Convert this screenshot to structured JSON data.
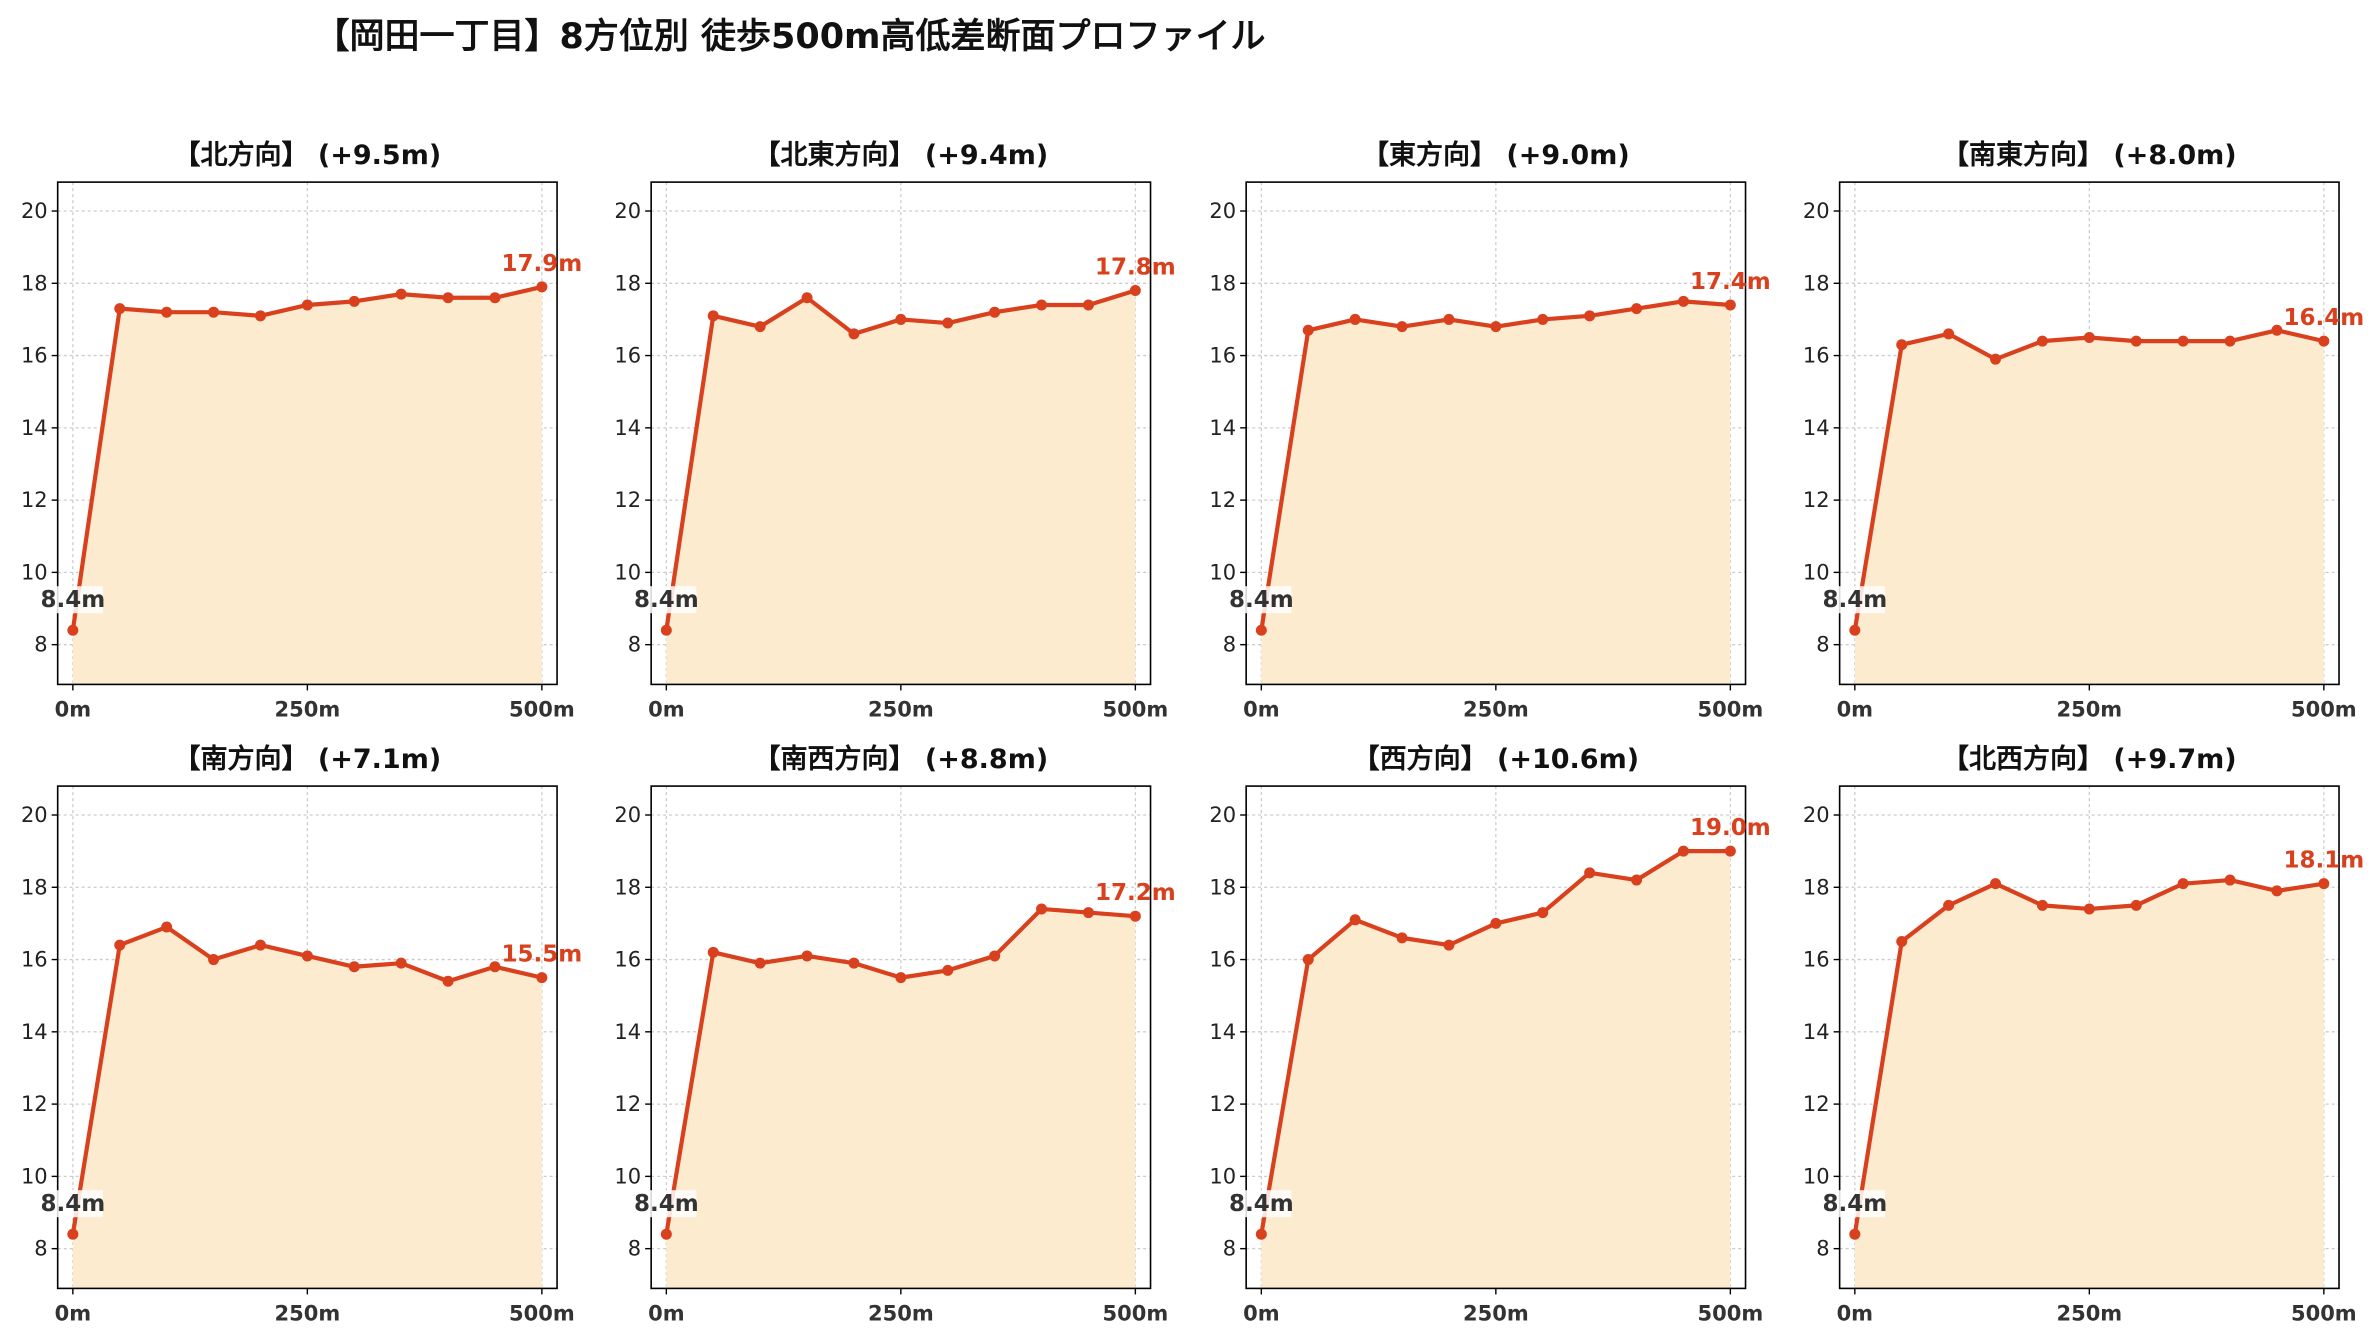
{
  "title": "【岡田一丁目】8方位別 徒歩500m高低差断面プロファイル",
  "colors": {
    "line": "#d9411e",
    "fill": "#fdebd0",
    "grid": "#cccccc",
    "axis": "#000000"
  },
  "chart_data": [
    {
      "type": "area",
      "title": "【北方向】 (+9.5m)",
      "x": [
        0,
        50,
        100,
        150,
        200,
        250,
        300,
        350,
        400,
        450,
        500
      ],
      "y": [
        8.4,
        17.3,
        17.2,
        17.2,
        17.1,
        17.4,
        17.5,
        17.7,
        17.6,
        17.6,
        17.9
      ],
      "start_label": "8.4m",
      "end_label": "17.9m",
      "xticks": [
        "0m",
        "250m",
        "500m"
      ],
      "yticks": [
        8,
        10,
        12,
        14,
        16,
        18,
        20
      ],
      "xlim": [
        0,
        500
      ],
      "ylim": [
        6.9,
        20.8
      ],
      "grid": true
    },
    {
      "type": "area",
      "title": "【北東方向】 (+9.4m)",
      "x": [
        0,
        50,
        100,
        150,
        200,
        250,
        300,
        350,
        400,
        450,
        500
      ],
      "y": [
        8.4,
        17.1,
        16.8,
        17.6,
        16.6,
        17.0,
        16.9,
        17.2,
        17.4,
        17.4,
        17.8
      ],
      "start_label": "8.4m",
      "end_label": "17.8m",
      "xticks": [
        "0m",
        "250m",
        "500m"
      ],
      "yticks": [
        8,
        10,
        12,
        14,
        16,
        18,
        20
      ],
      "xlim": [
        0,
        500
      ],
      "ylim": [
        6.9,
        20.8
      ],
      "grid": true
    },
    {
      "type": "area",
      "title": "【東方向】 (+9.0m)",
      "x": [
        0,
        50,
        100,
        150,
        200,
        250,
        300,
        350,
        400,
        450,
        500
      ],
      "y": [
        8.4,
        16.7,
        17.0,
        16.8,
        17.0,
        16.8,
        17.0,
        17.1,
        17.3,
        17.5,
        17.4
      ],
      "start_label": "8.4m",
      "end_label": "17.4m",
      "xticks": [
        "0m",
        "250m",
        "500m"
      ],
      "yticks": [
        8,
        10,
        12,
        14,
        16,
        18,
        20
      ],
      "xlim": [
        0,
        500
      ],
      "ylim": [
        6.9,
        20.8
      ],
      "grid": true
    },
    {
      "type": "area",
      "title": "【南東方向】 (+8.0m)",
      "x": [
        0,
        50,
        100,
        150,
        200,
        250,
        300,
        350,
        400,
        450,
        500
      ],
      "y": [
        8.4,
        16.3,
        16.6,
        15.9,
        16.4,
        16.5,
        16.4,
        16.4,
        16.4,
        16.7,
        16.4
      ],
      "start_label": "8.4m",
      "end_label": "16.4m",
      "xticks": [
        "0m",
        "250m",
        "500m"
      ],
      "yticks": [
        8,
        10,
        12,
        14,
        16,
        18,
        20
      ],
      "xlim": [
        0,
        500
      ],
      "ylim": [
        6.9,
        20.8
      ],
      "grid": true
    },
    {
      "type": "area",
      "title": "【南方向】 (+7.1m)",
      "x": [
        0,
        50,
        100,
        150,
        200,
        250,
        300,
        350,
        400,
        450,
        500
      ],
      "y": [
        8.4,
        16.4,
        16.9,
        16.0,
        16.4,
        16.1,
        15.8,
        15.9,
        15.4,
        15.8,
        15.5
      ],
      "start_label": "8.4m",
      "end_label": "15.5m",
      "xticks": [
        "0m",
        "250m",
        "500m"
      ],
      "yticks": [
        8,
        10,
        12,
        14,
        16,
        18,
        20
      ],
      "xlim": [
        0,
        500
      ],
      "ylim": [
        6.9,
        20.8
      ],
      "grid": true
    },
    {
      "type": "area",
      "title": "【南西方向】 (+8.8m)",
      "x": [
        0,
        50,
        100,
        150,
        200,
        250,
        300,
        350,
        400,
        450,
        500
      ],
      "y": [
        8.4,
        16.2,
        15.9,
        16.1,
        15.9,
        15.5,
        15.7,
        16.1,
        17.4,
        17.3,
        17.2
      ],
      "start_label": "8.4m",
      "end_label": "17.2m",
      "xticks": [
        "0m",
        "250m",
        "500m"
      ],
      "yticks": [
        8,
        10,
        12,
        14,
        16,
        18,
        20
      ],
      "xlim": [
        0,
        500
      ],
      "ylim": [
        6.9,
        20.8
      ],
      "grid": true
    },
    {
      "type": "area",
      "title": "【西方向】 (+10.6m)",
      "x": [
        0,
        50,
        100,
        150,
        200,
        250,
        300,
        350,
        400,
        450,
        500
      ],
      "y": [
        8.4,
        16.0,
        17.1,
        16.6,
        16.4,
        17.0,
        17.3,
        18.4,
        18.2,
        19.0,
        19.0
      ],
      "start_label": "8.4m",
      "end_label": "19.0m",
      "xticks": [
        "0m",
        "250m",
        "500m"
      ],
      "yticks": [
        8,
        10,
        12,
        14,
        16,
        18,
        20
      ],
      "xlim": [
        0,
        500
      ],
      "ylim": [
        6.9,
        20.8
      ],
      "grid": true
    },
    {
      "type": "area",
      "title": "【北西方向】 (+9.7m)",
      "x": [
        0,
        50,
        100,
        150,
        200,
        250,
        300,
        350,
        400,
        450,
        500
      ],
      "y": [
        8.4,
        16.5,
        17.5,
        18.1,
        17.5,
        17.4,
        17.5,
        18.1,
        18.2,
        17.9,
        18.1
      ],
      "start_label": "8.4m",
      "end_label": "18.1m",
      "xticks": [
        "0m",
        "250m",
        "500m"
      ],
      "yticks": [
        8,
        10,
        12,
        14,
        16,
        18,
        20
      ],
      "xlim": [
        0,
        500
      ],
      "ylim": [
        6.9,
        20.8
      ],
      "grid": true
    }
  ]
}
